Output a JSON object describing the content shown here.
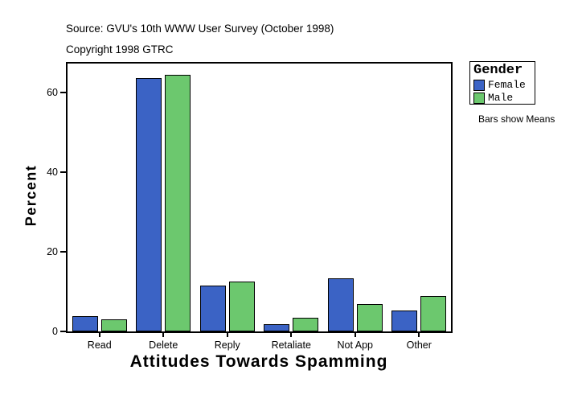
{
  "header": {
    "source": "Source: GVU's 10th WWW User Survey (October 1998)",
    "copyright": "Copyright 1998 GTRC"
  },
  "chart_data": {
    "type": "bar",
    "title": "",
    "xlabel": "Attitudes Towards Spamming",
    "ylabel": "Percent",
    "categories": [
      "Read",
      "Delete",
      "Reply",
      "Retaliate",
      "Not App",
      "Other"
    ],
    "series": [
      {
        "name": "Female",
        "color": "#3B63C5",
        "values": [
          3.8,
          63.7,
          11.5,
          1.8,
          13.3,
          5.2
        ]
      },
      {
        "name": "Male",
        "color": "#6CC86E",
        "values": [
          3.1,
          64.5,
          12.6,
          3.4,
          6.9,
          8.8
        ]
      }
    ],
    "yticks": [
      0,
      20,
      40,
      60
    ],
    "ylim": [
      0,
      67.3
    ],
    "grid": false,
    "legend_position": "right",
    "legend_title": "Gender",
    "annotation": "Bars show Means"
  }
}
